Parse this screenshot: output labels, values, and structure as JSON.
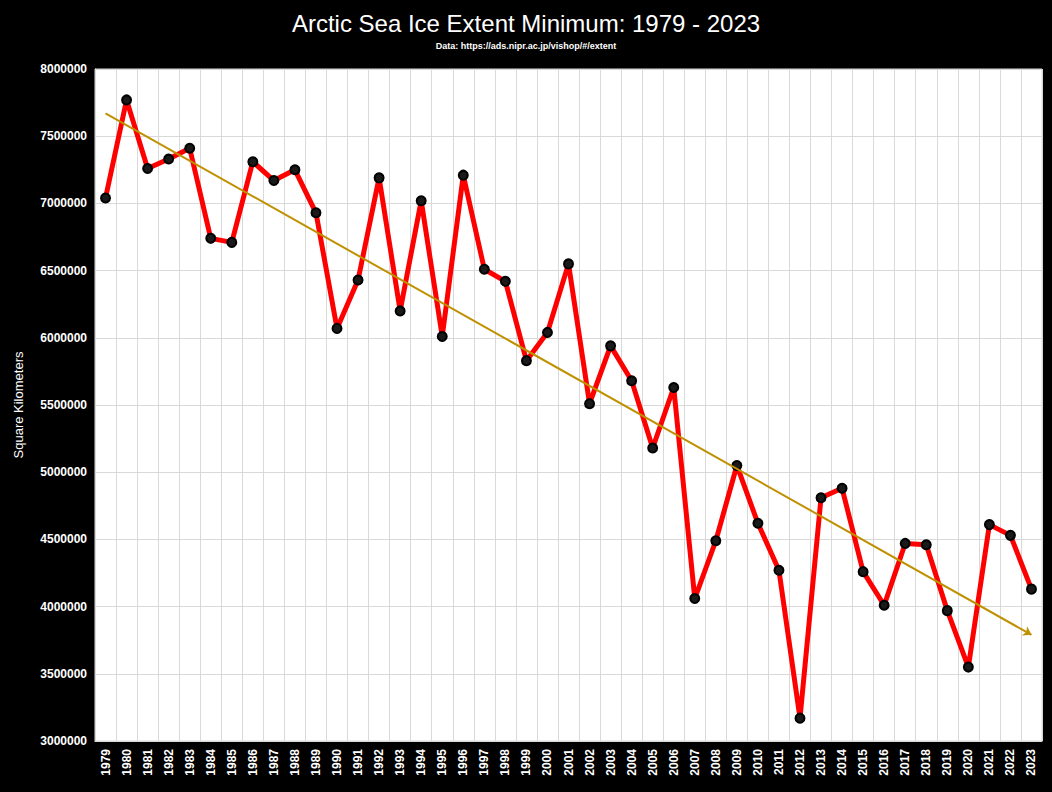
{
  "chart_data": {
    "type": "line",
    "title": "Arctic Sea Ice Extent Minimum: 1979 - 2023",
    "subtitle": "Data: https://ads.nipr.ac.jp/vishop/#/extent",
    "y_label": "Square Kilometers",
    "categories": [
      "1979",
      "1980",
      "1981",
      "1982",
      "1983",
      "1984",
      "1985",
      "1986",
      "1987",
      "1988",
      "1989",
      "1990",
      "1991",
      "1992",
      "1993",
      "1994",
      "1995",
      "1996",
      "1997",
      "1998",
      "1999",
      "2000",
      "2001",
      "2002",
      "2003",
      "2004",
      "2005",
      "2006",
      "2007",
      "2008",
      "2009",
      "2010",
      "2011",
      "2012",
      "2013",
      "2014",
      "2015",
      "2016",
      "2017",
      "2018",
      "2019",
      "2020",
      "2021",
      "2022",
      "2023"
    ],
    "values": [
      7040000,
      7770000,
      7260000,
      7330000,
      7410000,
      6740000,
      6710000,
      7310000,
      7170000,
      7250000,
      6930000,
      6070000,
      6430000,
      7190000,
      6200000,
      7020000,
      6010000,
      7210000,
      6510000,
      6420000,
      5830000,
      6040000,
      6550000,
      5510000,
      5940000,
      5680000,
      5180000,
      5630000,
      4060000,
      4490000,
      5050000,
      4620000,
      4270000,
      3170000,
      4810000,
      4880000,
      4260000,
      4010000,
      4470000,
      4460000,
      3970000,
      3550000,
      4610000,
      4530000,
      4130000
    ],
    "trend_line": [
      7670000,
      3790000
    ],
    "color": "#ff0000",
    "marker": "circle",
    "ylim": [
      3000000,
      8000000
    ],
    "yticks": [
      3000000,
      3500000,
      4000000,
      4500000,
      5000000,
      5500000,
      6000000,
      6500000,
      7000000,
      7500000,
      8000000
    ],
    "grid": true
  }
}
